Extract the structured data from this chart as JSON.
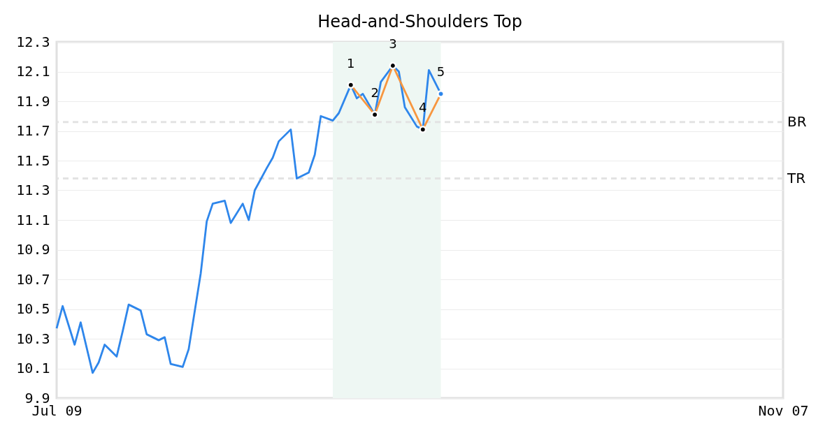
{
  "chart_data": {
    "type": "line",
    "title": "Head-and-Shoulders Top",
    "xlim": [
      "--07-09",
      "--11-07"
    ],
    "xticks": [
      {
        "value": "--07-09",
        "label": "Jul 09"
      },
      {
        "value": "--11-07",
        "label": "Nov 07"
      }
    ],
    "ylim": [
      9.9,
      12.3
    ],
    "yticks": [
      9.9,
      10.1,
      10.3,
      10.5,
      10.7,
      10.9,
      11.1,
      11.3,
      11.5,
      11.7,
      11.9,
      12.1,
      12.3
    ],
    "grid": "y",
    "series": [
      {
        "color": "#2e86eb",
        "marker": "none",
        "x": [
          "--07-09",
          "--07-10",
          "--07-12",
          "--07-13",
          "--07-15",
          "--07-16",
          "--07-17",
          "--07-19",
          "--07-20",
          "--07-21",
          "--07-23",
          "--07-24",
          "--07-26",
          "--07-27",
          "--07-28",
          "--07-30",
          "--07-31",
          "--08-02",
          "--08-03",
          "--08-04",
          "--08-06",
          "--08-07",
          "--08-09",
          "--08-10",
          "--08-11",
          "--08-13",
          "--08-14",
          "--08-15",
          "--08-17",
          "--08-18",
          "--08-20",
          "--08-21",
          "--08-22",
          "--08-24",
          "--08-25",
          "--08-27",
          "--08-28",
          "--08-29",
          "--08-31",
          "--09-01",
          "--09-03",
          "--09-04",
          "--09-05",
          "--09-07",
          "--09-08",
          "--09-09",
          "--09-11"
        ],
        "values": [
          10.37,
          10.52,
          10.26,
          10.41,
          10.07,
          10.14,
          10.26,
          10.18,
          10.35,
          10.53,
          10.49,
          10.33,
          10.29,
          10.31,
          10.13,
          10.11,
          10.23,
          10.74,
          11.09,
          11.21,
          11.23,
          11.08,
          11.21,
          11.1,
          11.3,
          11.45,
          11.52,
          11.63,
          11.71,
          11.38,
          11.42,
          11.54,
          11.8,
          11.77,
          11.82,
          12.01,
          11.92,
          11.95,
          11.81,
          12.03,
          12.14,
          12.1,
          11.86,
          11.73,
          11.71,
          12.11,
          11.95
        ]
      },
      {
        "color": "#f7963f",
        "marker": "none",
        "x": [
          "--08-27",
          "--08-31",
          "--09-03",
          "--09-08",
          "--09-11"
        ],
        "values": [
          12.01,
          11.81,
          12.14,
          11.71,
          11.95
        ]
      },
      {
        "type": "scatter",
        "marker": "circle",
        "x": [
          "--08-27",
          "--08-31",
          "--09-03",
          "--09-08",
          "--09-11"
        ],
        "values": [
          12.01,
          11.81,
          12.14,
          11.71,
          11.95
        ],
        "colors": [
          "#000000",
          "#000000",
          "#000000",
          "#000000",
          "#2e86eb"
        ]
      }
    ],
    "ref_lines": [
      {
        "axis": "y",
        "value": 11.76,
        "label": "BR",
        "color": "#e3e3e3",
        "line_style": "dashed"
      },
      {
        "axis": "y",
        "value": 11.38,
        "label": "TR",
        "color": "#e3e3e3",
        "line_style": "dashed"
      }
    ],
    "bands": [
      {
        "axis": "x",
        "from": "--08-24",
        "to": "--09-11",
        "color": "#eef7f3"
      }
    ],
    "annotations": [
      {
        "text": "1",
        "x": "--08-27",
        "y": 12.01
      },
      {
        "text": "2",
        "x": "--08-31",
        "y": 11.81
      },
      {
        "text": "3",
        "x": "--09-03",
        "y": 12.14
      },
      {
        "text": "4",
        "x": "--09-08",
        "y": 11.71
      },
      {
        "text": "5",
        "x": "--09-11",
        "y": 11.95
      }
    ]
  }
}
